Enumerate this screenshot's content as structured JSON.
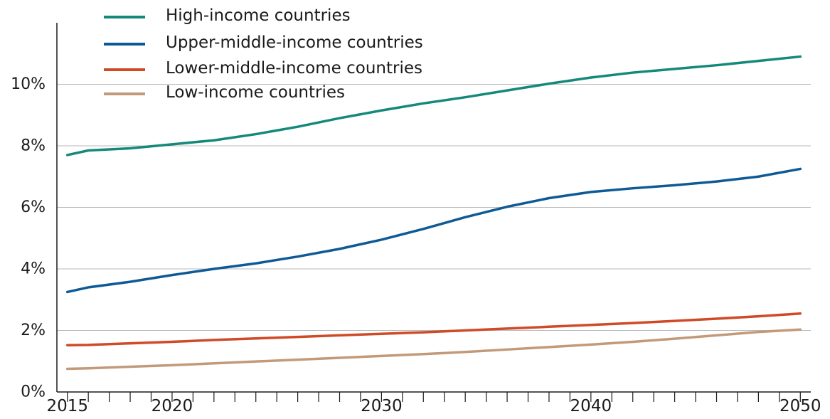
{
  "chart_data": {
    "type": "line",
    "title": "",
    "xlabel": "",
    "ylabel": "",
    "xlim": [
      2015,
      2050
    ],
    "ylim": [
      0,
      12
    ],
    "y_tick_values": [
      0,
      2,
      4,
      6,
      8,
      10
    ],
    "y_tick_labels": [
      "0%",
      "2%",
      "4%",
      "6%",
      "8%",
      "10%"
    ],
    "x_tick_labels": [
      "2015",
      "2020",
      "2030",
      "2040",
      "2050"
    ],
    "x_tick_label_values": [
      2015,
      2020,
      2030,
      2040,
      2050
    ],
    "x_minor_ticks": [
      2015,
      2016,
      2017,
      2018,
      2019,
      2020,
      2021,
      2022,
      2023,
      2024,
      2025,
      2026,
      2027,
      2028,
      2029,
      2030,
      2031,
      2032,
      2033,
      2034,
      2035,
      2036,
      2037,
      2038,
      2039,
      2040,
      2041,
      2042,
      2043,
      2044,
      2045,
      2046,
      2047,
      2048,
      2049,
      2050
    ],
    "grid": "horizontal",
    "legend_position": "top-left",
    "x": [
      2015,
      2016,
      2018,
      2020,
      2022,
      2024,
      2026,
      2028,
      2030,
      2032,
      2034,
      2036,
      2038,
      2040,
      2042,
      2044,
      2046,
      2048,
      2050
    ],
    "series": [
      {
        "name": "High-income countries",
        "color": "#14897a",
        "values": [
          7.7,
          7.85,
          7.92,
          8.05,
          8.18,
          8.38,
          8.62,
          8.9,
          9.15,
          9.38,
          9.58,
          9.8,
          10.02,
          10.22,
          10.38,
          10.5,
          10.62,
          10.76,
          10.9
        ]
      },
      {
        "name": "Upper-middle-income countries",
        "color": "#0e5a96",
        "values": [
          3.25,
          3.4,
          3.58,
          3.8,
          4.0,
          4.18,
          4.4,
          4.65,
          4.95,
          5.3,
          5.68,
          6.02,
          6.3,
          6.5,
          6.62,
          6.72,
          6.84,
          7.0,
          7.25
        ]
      },
      {
        "name": "Lower-middle-income countries",
        "color": "#d04a26",
        "values": [
          1.52,
          1.53,
          1.58,
          1.63,
          1.69,
          1.74,
          1.79,
          1.84,
          1.89,
          1.94,
          2.0,
          2.06,
          2.12,
          2.18,
          2.24,
          2.31,
          2.38,
          2.46,
          2.55
        ]
      },
      {
        "name": "Low-income countries",
        "color": "#c29a7a",
        "values": [
          0.75,
          0.77,
          0.82,
          0.87,
          0.93,
          0.99,
          1.05,
          1.11,
          1.17,
          1.23,
          1.3,
          1.38,
          1.46,
          1.54,
          1.63,
          1.73,
          1.84,
          1.95,
          2.03
        ]
      }
    ]
  }
}
